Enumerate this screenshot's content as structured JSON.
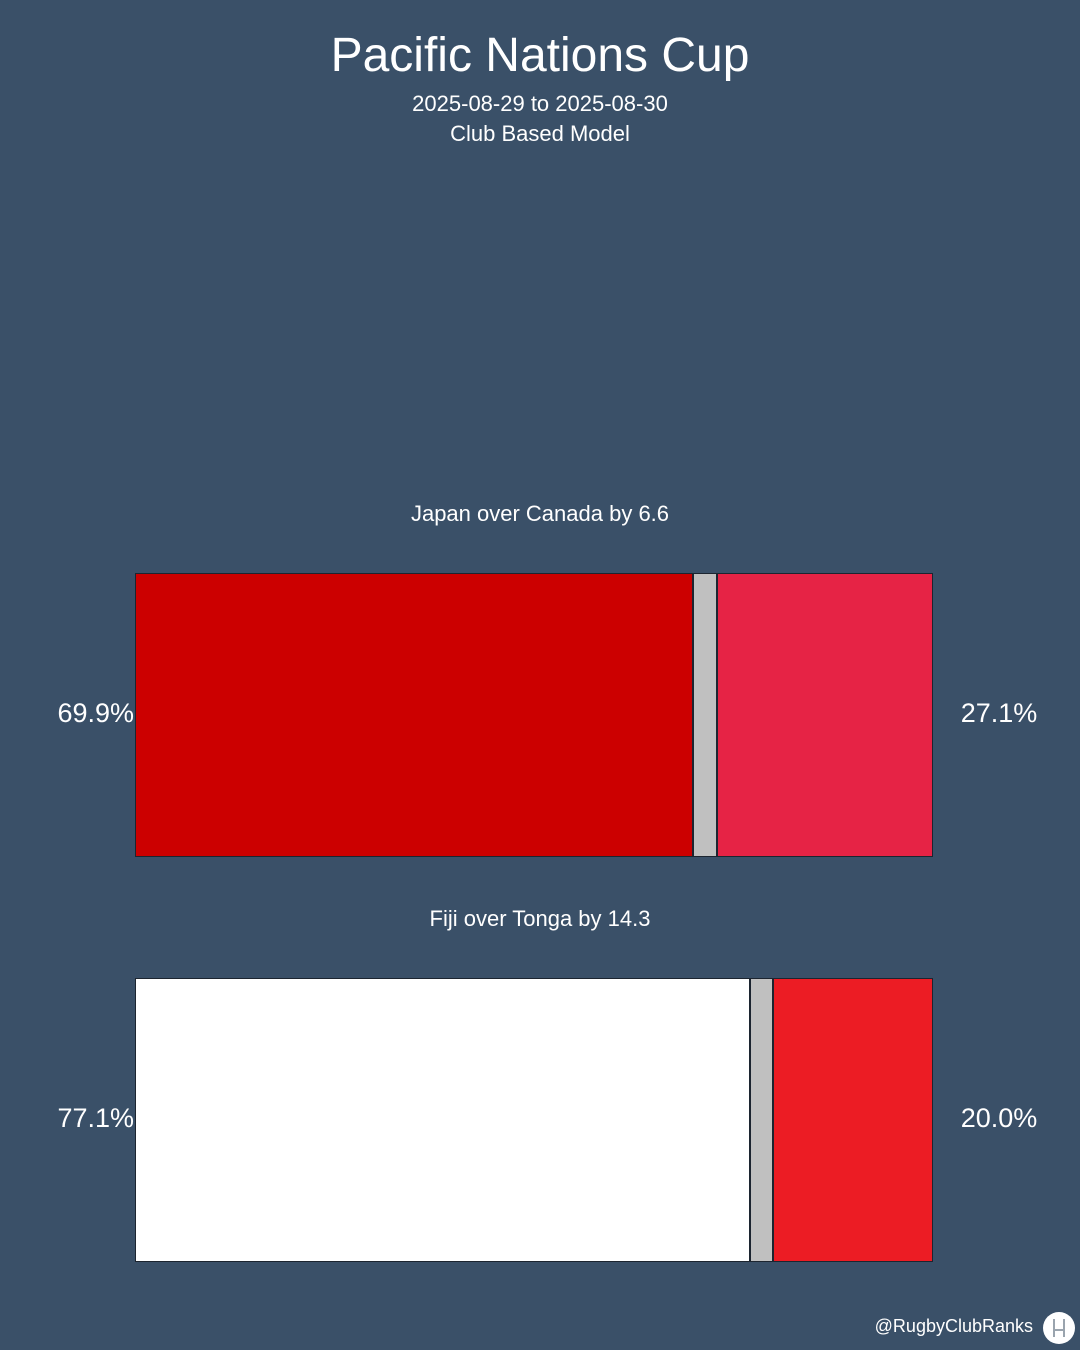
{
  "chart_data": {
    "type": "bar",
    "title": "Pacific Nations Cup",
    "subtitle": [
      "2025-08-29 to 2025-08-30",
      "Club Based Model"
    ],
    "matches": [
      {
        "label": "Japan over Canada by 6.6",
        "left_pct": 69.9,
        "draw_pct": 3.0,
        "right_pct": 27.1,
        "left_text": "69.9%",
        "right_text": "27.1%",
        "left_color": "#cc0000",
        "draw_color": "#c0c0c0",
        "right_color": "#e62345"
      },
      {
        "label": "Fiji over Tonga by 14.3",
        "left_pct": 77.1,
        "draw_pct": 2.9,
        "right_pct": 20.0,
        "left_text": "77.1%",
        "right_text": "20.0%",
        "left_color": "#ffffff",
        "draw_color": "#c0c0c0",
        "right_color": "#ec1c24"
      }
    ]
  },
  "footer": {
    "handle": "@RugbyClubRanks",
    "logo_icon": "goalposts-icon"
  }
}
